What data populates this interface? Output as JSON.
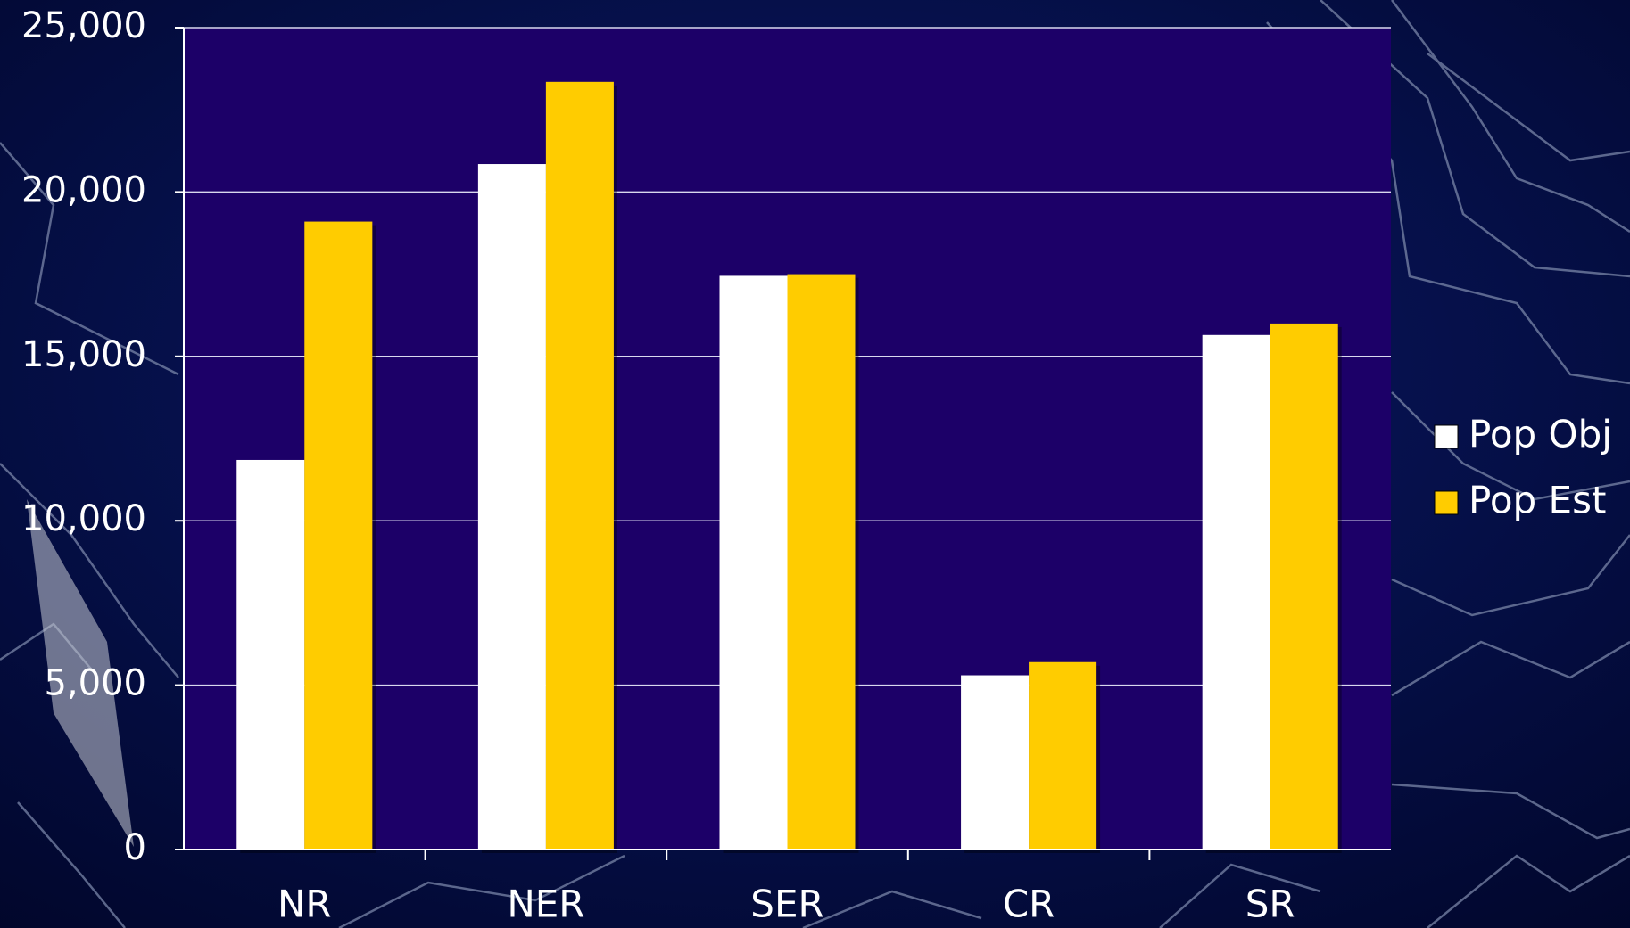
{
  "chart_data": {
    "type": "bar",
    "categories": [
      "NR",
      "NER",
      "SER",
      "CR",
      "SR"
    ],
    "series": [
      {
        "name": "Pop Obj",
        "color": "#ffffff",
        "values": [
          11850,
          20850,
          17450,
          5300,
          15650
        ]
      },
      {
        "name": "Pop Est",
        "color": "#ffcc00",
        "values": [
          19100,
          23350,
          17500,
          5700,
          16000
        ]
      }
    ],
    "ylim": [
      0,
      25000
    ],
    "yticks": [
      0,
      {
        "value": 5000,
        "label": "5,000"
      },
      {
        "value": 10000,
        "label": "10,000"
      },
      {
        "value": 15000,
        "label": "15,000"
      },
      {
        "value": 20000,
        "label": "20,000"
      },
      {
        "value": 25000,
        "label": "25,000"
      }
    ],
    "grid": true,
    "legend": "right",
    "plot_background": "#1c0068"
  }
}
